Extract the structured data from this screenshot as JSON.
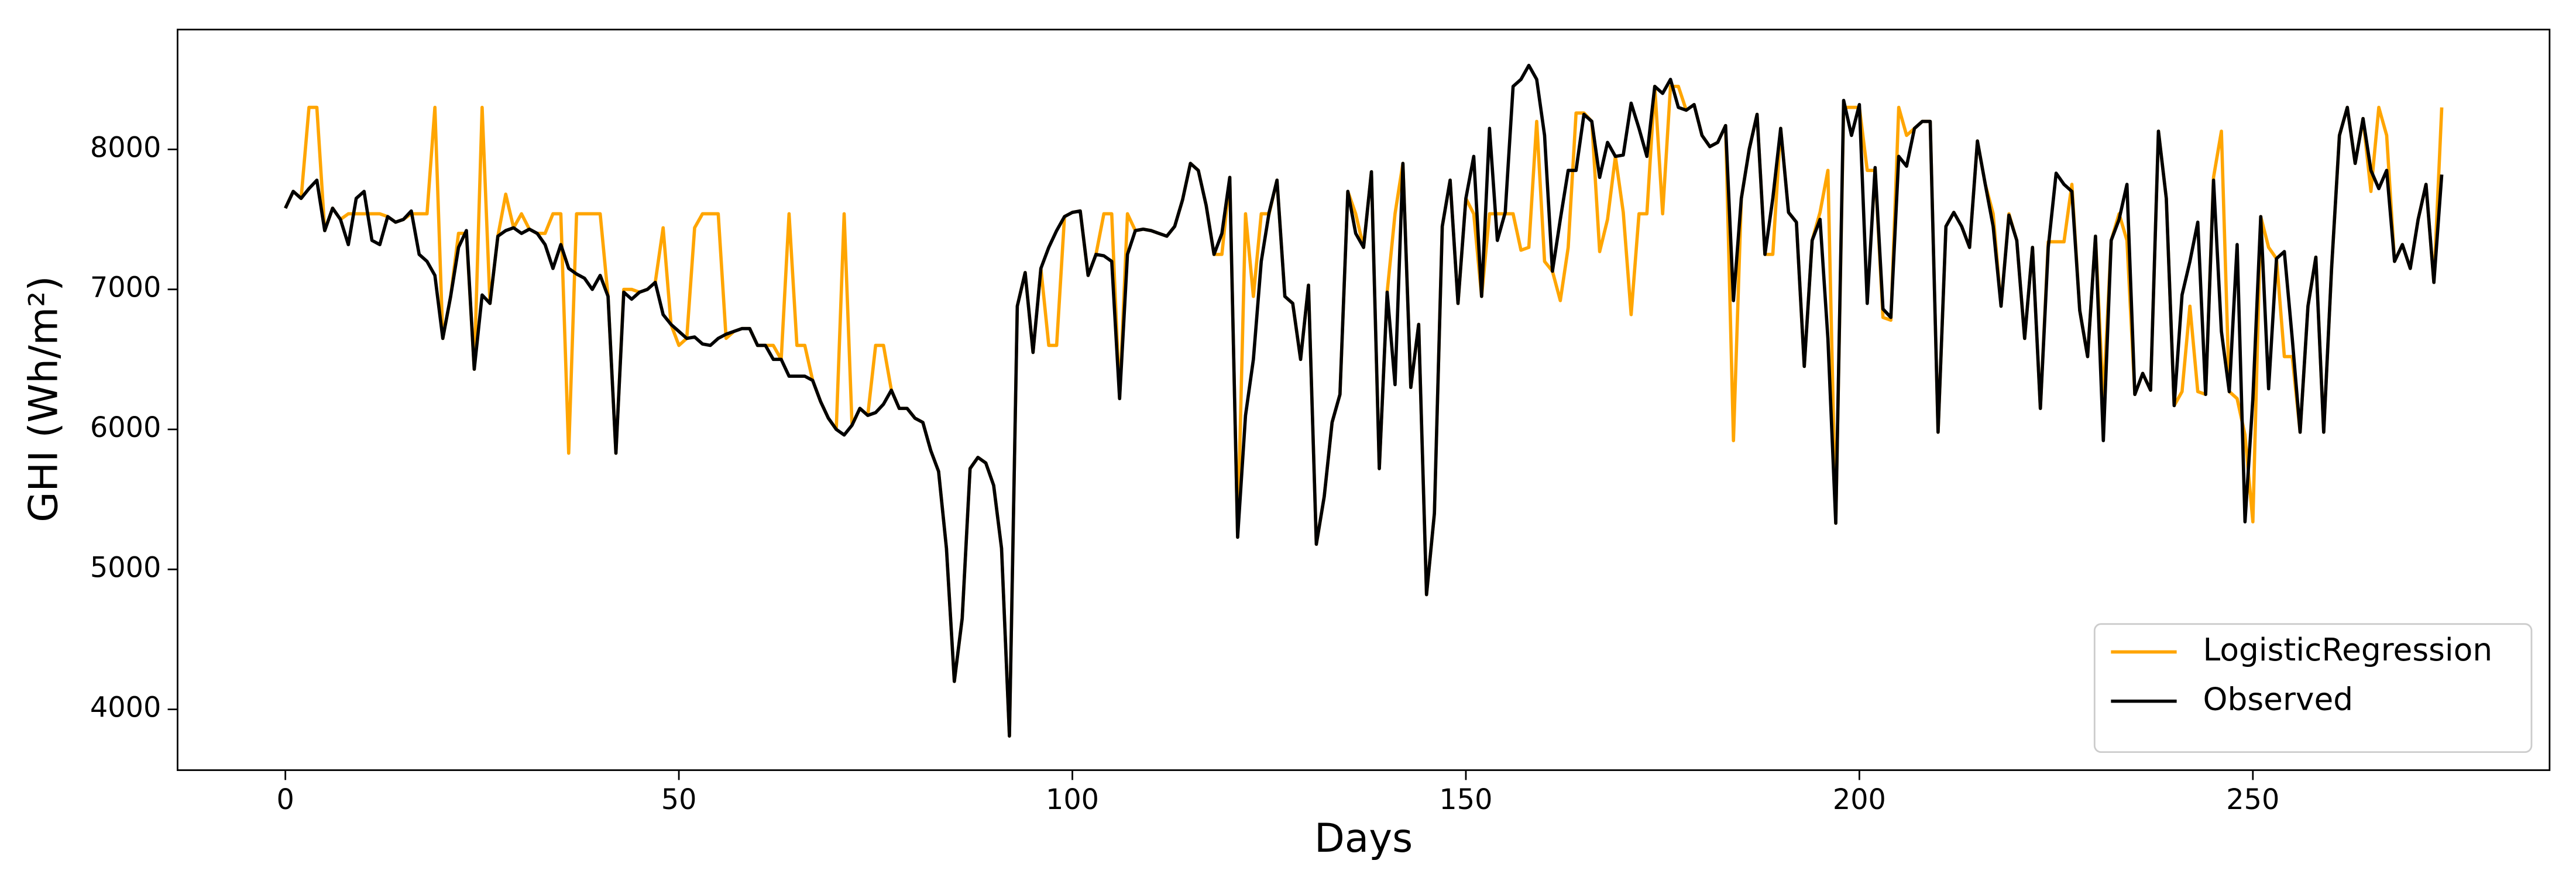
{
  "chart_data": {
    "type": "line",
    "xlabel": "Days",
    "ylabel": "GHI (Wh/m²)",
    "x": [
      0,
      1,
      2,
      3,
      4,
      5,
      6,
      7,
      8,
      9,
      10,
      11,
      12,
      13,
      14,
      15,
      16,
      17,
      18,
      19,
      20,
      21,
      22,
      23,
      24,
      25,
      26,
      27,
      28,
      29,
      30,
      31,
      32,
      33,
      34,
      35,
      36,
      37,
      38,
      39,
      40,
      41,
      42,
      43,
      44,
      45,
      46,
      47,
      48,
      49,
      50,
      51,
      52,
      53,
      54,
      55,
      56,
      57,
      58,
      59,
      60,
      61,
      62,
      63,
      64,
      65,
      66,
      67,
      68,
      69,
      70,
      71,
      72,
      73,
      74,
      75,
      76,
      77,
      78,
      79,
      80,
      81,
      82,
      83,
      84,
      85,
      86,
      87,
      88,
      89,
      90,
      91,
      92,
      93,
      94,
      95,
      96,
      97,
      98,
      99,
      100,
      101,
      102,
      103,
      104,
      105,
      106,
      107,
      108,
      109,
      110,
      111,
      112,
      113,
      114,
      115,
      116,
      117,
      118,
      119,
      120,
      121,
      122,
      123,
      124,
      125,
      126,
      127,
      128,
      129,
      130,
      131,
      132,
      133,
      134,
      135,
      136,
      137,
      138,
      139,
      140,
      141,
      142,
      143,
      144,
      145,
      146,
      147,
      148,
      149,
      150,
      151,
      152,
      153,
      154,
      155,
      156,
      157,
      158,
      159,
      160,
      161,
      162,
      163,
      164,
      165,
      166,
      167,
      168,
      169,
      170,
      171,
      172,
      173,
      174,
      175,
      176,
      177,
      178,
      179,
      180,
      181,
      182,
      183,
      184,
      185,
      186,
      187,
      188,
      189,
      190,
      191,
      192,
      193,
      194,
      195,
      196,
      197,
      198,
      199,
      200,
      201,
      202,
      203,
      204,
      205,
      206,
      207,
      208,
      209,
      210,
      211,
      212,
      213,
      214,
      215,
      216,
      217,
      218,
      219,
      220,
      221,
      222,
      223,
      224,
      225,
      226,
      227,
      228,
      229,
      230,
      231,
      232,
      233,
      234,
      235,
      236,
      237,
      238,
      239,
      240,
      241,
      242,
      243,
      244,
      245,
      246,
      247,
      248,
      249,
      250,
      251,
      252,
      253,
      254,
      255,
      256,
      257,
      258,
      259,
      260,
      261,
      262,
      263,
      264,
      265,
      266,
      267,
      268,
      269,
      270,
      271,
      272,
      273,
      274
    ],
    "series": [
      {
        "name": "LogisticRegression",
        "color": "#FFA500",
        "values": [
          7580,
          7700,
          7650,
          8300,
          8300,
          7420,
          7580,
          7500,
          7540,
          7540,
          7540,
          7540,
          7540,
          7520,
          7480,
          7500,
          7540,
          7540,
          7540,
          8300,
          6650,
          6950,
          7400,
          7400,
          6430,
          8300,
          6900,
          7380,
          7680,
          7440,
          7540,
          7430,
          7400,
          7400,
          7540,
          7540,
          5830,
          7540,
          7540,
          7540,
          7540,
          6950,
          5830,
          7000,
          7000,
          6980,
          7000,
          7050,
          7440,
          6750,
          6600,
          6650,
          7440,
          7540,
          7540,
          7540,
          6650,
          6700,
          6720,
          6720,
          6600,
          6600,
          6600,
          6500,
          7540,
          6600,
          6600,
          6350,
          6200,
          6080,
          6000,
          7540,
          6030,
          6150,
          6100,
          6600,
          6600,
          6280,
          6150,
          6150,
          6080,
          6050,
          5850,
          5700,
          5150,
          4200,
          4650,
          5720,
          5800,
          5760,
          5600,
          5150,
          3810,
          6880,
          7120,
          6550,
          7150,
          6600,
          6600,
          7520,
          7550,
          7560,
          7100,
          7250,
          7540,
          7540,
          6220,
          7540,
          7420,
          7430,
          7420,
          7400,
          7380,
          7450,
          7640,
          7900,
          7850,
          7600,
          7250,
          7250,
          7800,
          5230,
          7540,
          6950,
          7540,
          7540,
          7780,
          6950,
          6900,
          6500,
          7030,
          5180,
          5520,
          6050,
          6250,
          7700,
          7540,
          7300,
          7840,
          5720,
          6980,
          7540,
          7900,
          6300,
          6750,
          4820,
          5400,
          7450,
          7780,
          6900,
          7650,
          7540,
          6950,
          7540,
          7540,
          7540,
          7540,
          7280,
          7300,
          8200,
          7200,
          7130,
          6920,
          7300,
          8260,
          8260,
          8200,
          7270,
          7500,
          7950,
          7550,
          6820,
          7540,
          7540,
          8450,
          7540,
          8450,
          8450,
          8280,
          8320,
          8100,
          8020,
          8050,
          8170,
          5920,
          7650,
          8000,
          8250,
          7250,
          7250,
          8150,
          7550,
          7480,
          6450,
          7350,
          7550,
          7850,
          5330,
          8300,
          8300,
          8300,
          7850,
          7850,
          6800,
          6780,
          8300,
          8100,
          8150,
          8200,
          8200,
          5980,
          7450,
          7550,
          7450,
          7300,
          8060,
          7750,
          7540,
          6880,
          7540,
          7350,
          6650,
          7300,
          6150,
          7340,
          7340,
          7340,
          7750,
          6850,
          6520,
          7380,
          6200,
          7350,
          7540,
          7350,
          6250,
          6400,
          6280,
          8130,
          7650,
          6170,
          6270,
          6880,
          6270,
          6250,
          7800,
          8130,
          6270,
          6220,
          5960,
          5340,
          7520,
          7300,
          7220,
          6520,
          6520,
          5980,
          6880,
          7230,
          5980,
          7150,
          8100,
          8300,
          7900,
          8220,
          7700,
          8300,
          8100,
          7200,
          7320,
          7150,
          7500,
          7750,
          7050,
          8300
        ]
      },
      {
        "name": "Observed",
        "color": "#000000",
        "values": [
          7580,
          7700,
          7650,
          7720,
          7780,
          7420,
          7580,
          7500,
          7320,
          7650,
          7700,
          7350,
          7320,
          7520,
          7480,
          7500,
          7560,
          7250,
          7200,
          7100,
          6650,
          6950,
          7300,
          7420,
          6430,
          6960,
          6900,
          7380,
          7420,
          7440,
          7400,
          7430,
          7400,
          7320,
          7150,
          7320,
          7150,
          7110,
          7080,
          7000,
          7100,
          6950,
          5830,
          6980,
          6930,
          6980,
          7000,
          7050,
          6820,
          6750,
          6700,
          6650,
          6660,
          6610,
          6600,
          6650,
          6680,
          6700,
          6720,
          6720,
          6600,
          6600,
          6500,
          6500,
          6380,
          6380,
          6380,
          6350,
          6200,
          6080,
          6000,
          5960,
          6030,
          6150,
          6100,
          6120,
          6180,
          6280,
          6150,
          6150,
          6080,
          6050,
          5850,
          5700,
          5150,
          4200,
          4650,
          5720,
          5800,
          5760,
          5600,
          5150,
          3810,
          6880,
          7120,
          6550,
          7150,
          7300,
          7420,
          7520,
          7550,
          7560,
          7100,
          7250,
          7240,
          7200,
          6220,
          7250,
          7420,
          7430,
          7420,
          7400,
          7380,
          7450,
          7640,
          7900,
          7850,
          7600,
          7250,
          7400,
          7800,
          5230,
          6100,
          6500,
          7200,
          7550,
          7780,
          6950,
          6900,
          6500,
          7030,
          5180,
          5520,
          6050,
          6250,
          7700,
          7400,
          7300,
          7840,
          5720,
          6980,
          6320,
          7900,
          6300,
          6750,
          4820,
          5400,
          7450,
          7780,
          6900,
          7650,
          7950,
          6950,
          8150,
          7350,
          7550,
          8450,
          8500,
          8600,
          8500,
          8100,
          7130,
          7500,
          7850,
          7850,
          8250,
          8200,
          7800,
          8050,
          7950,
          7960,
          8330,
          8150,
          7950,
          8450,
          8400,
          8500,
          8300,
          8280,
          8320,
          8100,
          8020,
          8050,
          8170,
          6920,
          7650,
          8000,
          8250,
          7250,
          7650,
          8150,
          7550,
          7480,
          6450,
          7350,
          7500,
          6650,
          5330,
          8350,
          8100,
          8320,
          6900,
          7870,
          6860,
          6800,
          7950,
          7880,
          8150,
          8200,
          8200,
          5980,
          7450,
          7550,
          7450,
          7300,
          8060,
          7750,
          7450,
          6880,
          7530,
          7350,
          6650,
          7300,
          6150,
          7300,
          7830,
          7750,
          7700,
          6850,
          6520,
          7380,
          5920,
          7350,
          7500,
          7750,
          6250,
          6400,
          6280,
          8130,
          7650,
          6170,
          6960,
          7200,
          7480,
          6250,
          7780,
          6700,
          6270,
          7320,
          5340,
          6220,
          7520,
          6290,
          7220,
          7270,
          6650,
          5980,
          6880,
          7230,
          5980,
          7150,
          8100,
          8300,
          7900,
          8220,
          7850,
          7720,
          7850,
          7200,
          7320,
          7150,
          7500,
          7750,
          7050,
          7820
        ]
      }
    ],
    "xlim": [
      -13.7,
      287.7
    ],
    "ylim": [
      3566,
      8856
    ],
    "xticks": [
      0,
      50,
      100,
      150,
      200,
      250
    ],
    "yticks": [
      4000,
      5000,
      6000,
      7000,
      8000
    ],
    "grid": false,
    "legend": "lower right"
  }
}
